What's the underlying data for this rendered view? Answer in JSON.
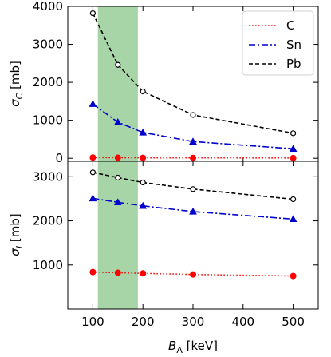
{
  "chart_data": [
    {
      "type": "line",
      "ylabel_main": "σ",
      "ylabel_sub": "C",
      "ylabel_unit": " [mb]",
      "ylim": [
        -80,
        4000
      ],
      "xlim": [
        50,
        550
      ],
      "yticks": [
        0,
        1000,
        2000,
        3000,
        4000
      ],
      "ytick_labels": [
        "0",
        "1000",
        "2000",
        "3000",
        "4000"
      ],
      "xticks": [
        100,
        200,
        300,
        400,
        500
      ],
      "highlight_band": [
        110,
        190
      ],
      "band_color": "#a8d5a8",
      "legend": {
        "placement": "top-right",
        "frame": true
      },
      "x": [
        100,
        150,
        200,
        300,
        500
      ],
      "series": [
        {
          "name": "C",
          "values": [
            20,
            15,
            12,
            10,
            8
          ],
          "color": "#ff0000",
          "linestyle": "dotted",
          "marker": "filled-circle"
        },
        {
          "name": "Sn",
          "values": [
            1430,
            950,
            680,
            440,
            250
          ],
          "color": "#0000cc",
          "linestyle": "dashdot",
          "marker": "triangle"
        },
        {
          "name": "Pb",
          "values": [
            3820,
            2460,
            1760,
            1140,
            660
          ],
          "color": "#000000",
          "linestyle": "dashed",
          "marker": "open-circle"
        }
      ]
    },
    {
      "type": "line",
      "ylabel_main": "σ",
      "ylabel_sub": "I",
      "ylabel_unit": " [mb]",
      "ylim": [
        0,
        3350
      ],
      "xlim": [
        50,
        550
      ],
      "yticks": [
        1000,
        2000,
        3000
      ],
      "ytick_labels": [
        "1000",
        "2000",
        "3000"
      ],
      "xticks": [
        100,
        200,
        300,
        400,
        500
      ],
      "xtick_labels": [
        "100",
        "200",
        "300",
        "400",
        "500"
      ],
      "xlabel_main": "B",
      "xlabel_sub": "Λ",
      "xlabel_unit": "  [keV]",
      "highlight_band": [
        110,
        190
      ],
      "band_color": "#a8d5a8",
      "x": [
        100,
        150,
        200,
        300,
        500
      ],
      "series": [
        {
          "name": "C",
          "values": [
            840,
            825,
            810,
            785,
            750
          ],
          "color": "#ff0000",
          "linestyle": "dotted",
          "marker": "filled-circle"
        },
        {
          "name": "Sn",
          "values": [
            2510,
            2420,
            2340,
            2210,
            2040
          ],
          "color": "#0000cc",
          "linestyle": "dashdot",
          "marker": "triangle"
        },
        {
          "name": "Pb",
          "values": [
            3100,
            2980,
            2870,
            2720,
            2490
          ],
          "color": "#000000",
          "linestyle": "dashed",
          "marker": "open-circle"
        }
      ]
    }
  ]
}
